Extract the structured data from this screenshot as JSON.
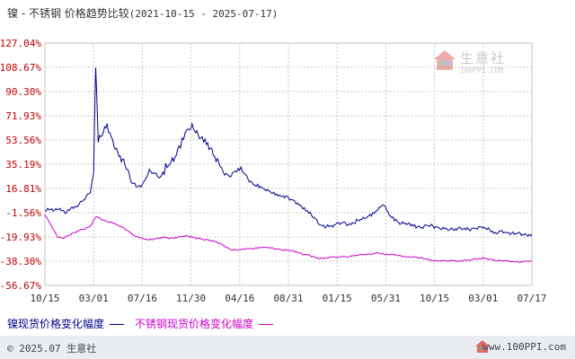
{
  "title": {
    "main": "镍 - 不锈钢 价格趋势比较",
    "range": "(2021-10-15 - 2025-07-17)"
  },
  "watermark": {
    "name": "生意社",
    "url": "100PPI.COM"
  },
  "footer": {
    "copyright": "© 2025.07 生意社",
    "site": "www.100PPI.com"
  },
  "colors": {
    "nickel": "#00008b",
    "stainless": "#cc00cc",
    "grid": "#c8c8c8"
  },
  "chart_data": {
    "type": "line",
    "y_ticks": [
      "127.04%",
      "108.67%",
      "90.30%",
      "71.93%",
      "53.56%",
      "35.19%",
      "16.81%",
      "-1.56%",
      "-19.93%",
      "-38.30%",
      "-56.67%"
    ],
    "x_ticks": [
      "10/15",
      "03/01",
      "07/16",
      "11/30",
      "04/16",
      "08/31",
      "01/15",
      "05/31",
      "10/15",
      "03/01",
      "07/17"
    ],
    "x_range": [
      "2021-10-15",
      "2025-07-17"
    ],
    "ylim": [
      -56.67,
      127.04
    ],
    "series": [
      {
        "name": "镍现货价格变化幅度",
        "color": "#00008b",
        "points": [
          [
            "2021-10-15",
            0
          ],
          [
            "2021-11-15",
            1
          ],
          [
            "2021-12-15",
            -1
          ],
          [
            "2022-01-15",
            4
          ],
          [
            "2022-02-01",
            8
          ],
          [
            "2022-02-20",
            14
          ],
          [
            "2022-03-01",
            30
          ],
          [
            "2022-03-07",
            110
          ],
          [
            "2022-03-10",
            88
          ],
          [
            "2022-03-14",
            55
          ],
          [
            "2022-03-25",
            60
          ],
          [
            "2022-04-08",
            66
          ],
          [
            "2022-04-20",
            57
          ],
          [
            "2022-05-01",
            50
          ],
          [
            "2022-05-15",
            42
          ],
          [
            "2022-05-25",
            38
          ],
          [
            "2022-06-05",
            33
          ],
          [
            "2022-06-15",
            22
          ],
          [
            "2022-06-25",
            20
          ],
          [
            "2022-07-05",
            18
          ],
          [
            "2022-07-16",
            20
          ],
          [
            "2022-07-26",
            24
          ],
          [
            "2022-08-05",
            30
          ],
          [
            "2022-08-20",
            28
          ],
          [
            "2022-09-05",
            25
          ],
          [
            "2022-09-20",
            32
          ],
          [
            "2022-10-05",
            35
          ],
          [
            "2022-10-20",
            42
          ],
          [
            "2022-11-05",
            52
          ],
          [
            "2022-11-18",
            58
          ],
          [
            "2022-11-30",
            63
          ],
          [
            "2022-12-10",
            60
          ],
          [
            "2022-12-20",
            55
          ],
          [
            "2023-01-05",
            52
          ],
          [
            "2023-01-20",
            48
          ],
          [
            "2023-02-05",
            40
          ],
          [
            "2023-02-20",
            33
          ],
          [
            "2023-03-05",
            28
          ],
          [
            "2023-03-20",
            26
          ],
          [
            "2023-04-05",
            30
          ],
          [
            "2023-04-16",
            33
          ],
          [
            "2023-04-28",
            30
          ],
          [
            "2023-05-10",
            24
          ],
          [
            "2023-05-25",
            20
          ],
          [
            "2023-06-10",
            19
          ],
          [
            "2023-06-25",
            17
          ],
          [
            "2023-07-10",
            15
          ],
          [
            "2023-07-25",
            13
          ],
          [
            "2023-08-10",
            12
          ],
          [
            "2023-08-31",
            10
          ],
          [
            "2023-09-15",
            8
          ],
          [
            "2023-10-01",
            5
          ],
          [
            "2023-10-15",
            2
          ],
          [
            "2023-11-01",
            -2
          ],
          [
            "2023-11-15",
            -6
          ],
          [
            "2023-12-01",
            -11
          ],
          [
            "2023-12-20",
            -12
          ],
          [
            "2024-01-15",
            -10
          ],
          [
            "2024-02-01",
            -9
          ],
          [
            "2024-02-20",
            -11
          ],
          [
            "2024-03-10",
            -8
          ],
          [
            "2024-03-25",
            -7
          ],
          [
            "2024-04-10",
            -5
          ],
          [
            "2024-04-25",
            -3
          ],
          [
            "2024-05-10",
            0
          ],
          [
            "2024-05-20",
            4
          ],
          [
            "2024-05-31",
            2
          ],
          [
            "2024-06-10",
            -4
          ],
          [
            "2024-06-25",
            -7
          ],
          [
            "2024-07-10",
            -10
          ],
          [
            "2024-07-25",
            -10
          ],
          [
            "2024-08-10",
            -11
          ],
          [
            "2024-08-25",
            -12
          ],
          [
            "2024-09-10",
            -13
          ],
          [
            "2024-09-25",
            -11
          ],
          [
            "2024-10-15",
            -12
          ],
          [
            "2024-11-01",
            -13
          ],
          [
            "2024-11-20",
            -14
          ],
          [
            "2024-12-10",
            -14
          ],
          [
            "2025-01-01",
            -13
          ],
          [
            "2025-01-20",
            -14
          ],
          [
            "2025-02-05",
            -13
          ],
          [
            "2025-03-01",
            -12
          ],
          [
            "2025-03-20",
            -14
          ],
          [
            "2025-04-05",
            -17
          ],
          [
            "2025-04-20",
            -15
          ],
          [
            "2025-05-05",
            -16
          ],
          [
            "2025-05-25",
            -17
          ],
          [
            "2025-06-10",
            -17
          ],
          [
            "2025-06-25",
            -18
          ],
          [
            "2025-07-17",
            -18
          ]
        ]
      },
      {
        "name": "不锈钢现货价格变化幅度",
        "color": "#cc00cc",
        "points": [
          [
            "2021-10-15",
            -3
          ],
          [
            "2021-10-25",
            -8
          ],
          [
            "2021-11-05",
            -13
          ],
          [
            "2021-11-20",
            -20
          ],
          [
            "2021-12-05",
            -21
          ],
          [
            "2021-12-20",
            -19
          ],
          [
            "2022-01-10",
            -16
          ],
          [
            "2022-02-01",
            -14
          ],
          [
            "2022-02-20",
            -12
          ],
          [
            "2022-03-01",
            -7
          ],
          [
            "2022-03-10",
            -4
          ],
          [
            "2022-03-20",
            -6
          ],
          [
            "2022-04-05",
            -8
          ],
          [
            "2022-04-25",
            -9
          ],
          [
            "2022-05-10",
            -11
          ],
          [
            "2022-05-25",
            -13
          ],
          [
            "2022-06-10",
            -16
          ],
          [
            "2022-06-25",
            -19
          ],
          [
            "2022-07-16",
            -21
          ],
          [
            "2022-08-05",
            -22
          ],
          [
            "2022-08-25",
            -21
          ],
          [
            "2022-09-15",
            -20
          ],
          [
            "2022-10-05",
            -21
          ],
          [
            "2022-10-25",
            -20
          ],
          [
            "2022-11-15",
            -19
          ],
          [
            "2022-11-30",
            -20
          ],
          [
            "2022-12-20",
            -21
          ],
          [
            "2023-01-10",
            -22
          ],
          [
            "2023-02-01",
            -23
          ],
          [
            "2023-02-20",
            -25
          ],
          [
            "2023-03-10",
            -28
          ],
          [
            "2023-03-25",
            -30
          ],
          [
            "2023-04-16",
            -30
          ],
          [
            "2023-05-05",
            -29
          ],
          [
            "2023-05-25",
            -29
          ],
          [
            "2023-06-15",
            -28
          ],
          [
            "2023-07-05",
            -28
          ],
          [
            "2023-07-25",
            -29
          ],
          [
            "2023-08-15",
            -30
          ],
          [
            "2023-08-31",
            -30
          ],
          [
            "2023-09-20",
            -31
          ],
          [
            "2023-10-10",
            -33
          ],
          [
            "2023-11-01",
            -34
          ],
          [
            "2023-11-20",
            -36
          ],
          [
            "2023-12-10",
            -36
          ],
          [
            "2024-01-15",
            -35
          ],
          [
            "2024-02-10",
            -35
          ],
          [
            "2024-03-05",
            -34
          ],
          [
            "2024-03-25",
            -33
          ],
          [
            "2024-04-15",
            -33
          ],
          [
            "2024-05-10",
            -32
          ],
          [
            "2024-05-31",
            -33
          ],
          [
            "2024-06-20",
            -33
          ],
          [
            "2024-07-10",
            -34
          ],
          [
            "2024-08-01",
            -35
          ],
          [
            "2024-08-20",
            -35
          ],
          [
            "2024-09-10",
            -36
          ],
          [
            "2024-09-25",
            -37
          ],
          [
            "2024-10-15",
            -38
          ],
          [
            "2024-11-05",
            -38
          ],
          [
            "2024-12-01",
            -38
          ],
          [
            "2025-01-05",
            -38
          ],
          [
            "2025-02-01",
            -37
          ],
          [
            "2025-03-01",
            -36
          ],
          [
            "2025-03-20",
            -37
          ],
          [
            "2025-04-10",
            -38
          ],
          [
            "2025-05-01",
            -38
          ],
          [
            "2025-05-25",
            -39
          ],
          [
            "2025-06-15",
            -39
          ],
          [
            "2025-07-17",
            -38
          ]
        ]
      }
    ]
  }
}
